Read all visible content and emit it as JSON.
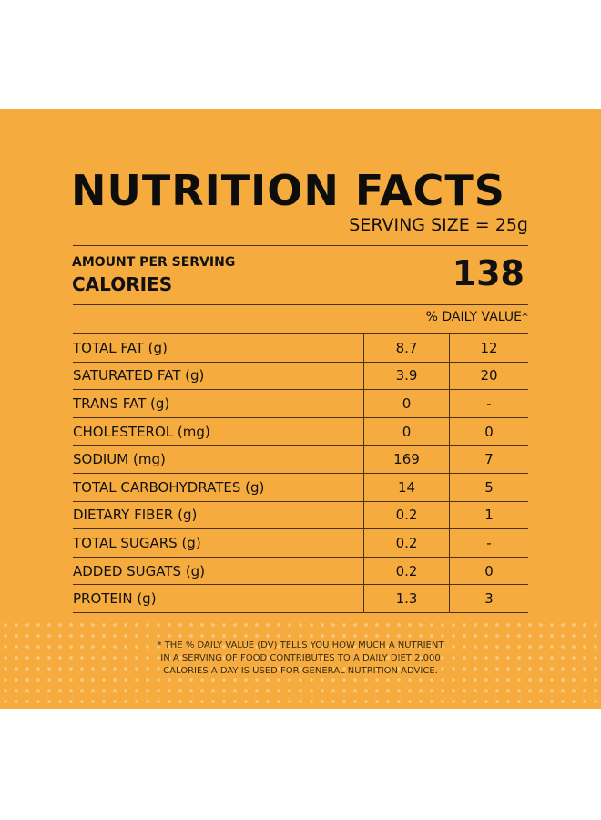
{
  "title": "NUTRITION FACTS",
  "serving_size": "SERVING SIZE = 25g",
  "amount_per_serving": "AMOUNT PER SERVING",
  "calories_label": "CALORIES",
  "calories_value": "138",
  "daily_value_header": "% DAILY VALUE*",
  "rows": [
    {
      "name": "TOTAL FAT (g)",
      "amount": "8.7",
      "dv": "12"
    },
    {
      "name": "SATURATED FAT (g)",
      "amount": "3.9",
      "dv": "20"
    },
    {
      "name": "TRANS FAT (g)",
      "amount": "0",
      "dv": "-"
    },
    {
      "name": "CHOLESTEROL (mg)",
      "amount": "0",
      "dv": "0"
    },
    {
      "name": "SODIUM (mg)",
      "amount": "169",
      "dv": "7"
    },
    {
      "name": "TOTAL CARBOHYDRATES (g)",
      "amount": "14",
      "dv": "5"
    },
    {
      "name": "DIETARY FIBER (g)",
      "amount": "0.2",
      "dv": "1"
    },
    {
      "name": "TOTAL SUGARS (g)",
      "amount": "0.2",
      "dv": "-"
    },
    {
      "name": "ADDED SUGATS (g)",
      "amount": "0.2",
      "dv": "0"
    },
    {
      "name": "PROTEIN (g)",
      "amount": "1.3",
      "dv": "3"
    }
  ],
  "footnote": [
    "* THE % DAILY VALUE (DV) TELLS YOU HOW MUCH A NUTRIENT",
    "IN A SERVING OF FOOD CONTRIBUTES TO A DAILY DIET 2,000",
    "CALORIES A DAY IS USED FOR GENERAL NUTRITION ADVICE."
  ],
  "colors": {
    "background": "#F5AB3E",
    "text": "#111111"
  }
}
